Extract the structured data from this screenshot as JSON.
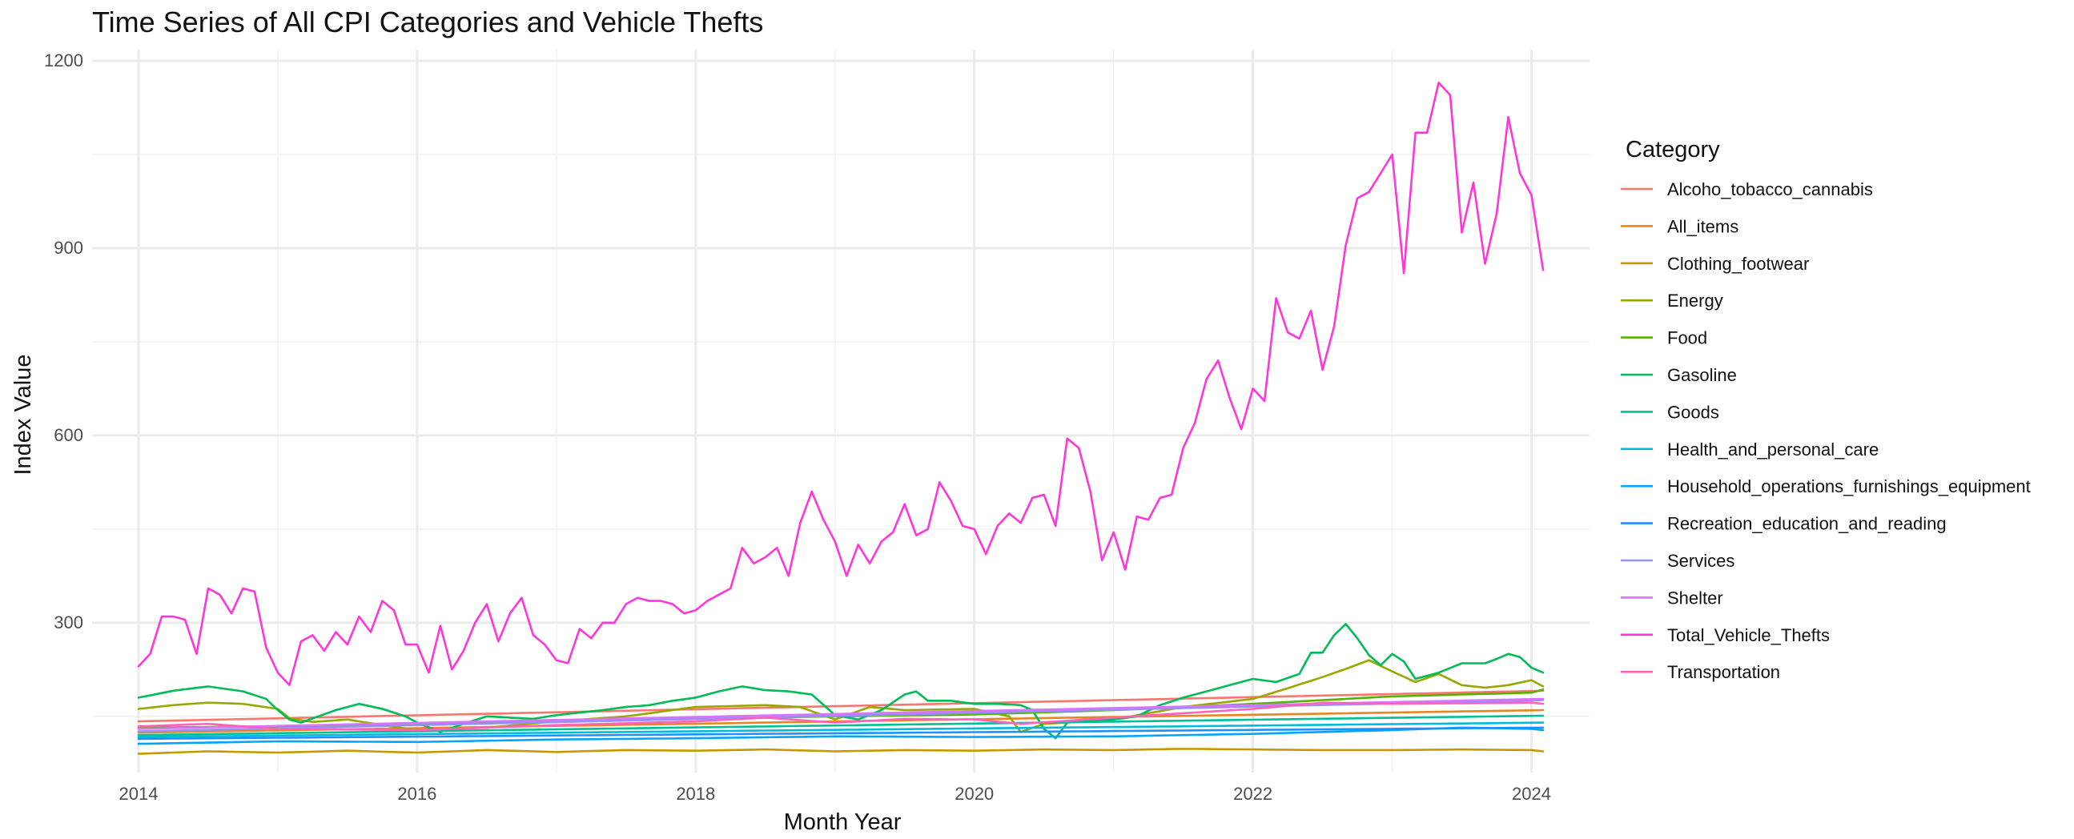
{
  "chart_data": {
    "type": "line",
    "title": "Time Series of All CPI Categories and Vehicle Thefts",
    "xlabel": "Month Year",
    "ylabel": "Index Value",
    "x_ticks": [
      "2014",
      "2016",
      "2018",
      "2020",
      "2022",
      "2024"
    ],
    "y_ticks": [
      300,
      600,
      900,
      1200
    ],
    "xlim": [
      "2013-09",
      "2024-06"
    ],
    "ylim": [
      60,
      1218
    ],
    "grid": true,
    "legend": {
      "title": "Category",
      "position": "right"
    },
    "x_start": "2014-01",
    "x_frequency": "monthly",
    "series": [
      {
        "name": "Alcoho_tobacco_cannabis",
        "color": "#F8766D",
        "kind": "linear",
        "values": [
          142,
          191
        ]
      },
      {
        "name": "All_items",
        "color": "#E7851E",
        "kind": "linear",
        "values": [
          124,
          160
        ]
      },
      {
        "name": "Clothing_footwear",
        "color": "#C49A00",
        "kind": "anchors",
        "values": [
          [
            0,
            90
          ],
          [
            6,
            94
          ],
          [
            12,
            92
          ],
          [
            18,
            95
          ],
          [
            24,
            92
          ],
          [
            30,
            96
          ],
          [
            36,
            93
          ],
          [
            42,
            96
          ],
          [
            48,
            95
          ],
          [
            54,
            97
          ],
          [
            60,
            94
          ],
          [
            66,
            96
          ],
          [
            72,
            95
          ],
          [
            78,
            97
          ],
          [
            84,
            96
          ],
          [
            90,
            98
          ],
          [
            96,
            97
          ],
          [
            102,
            96
          ],
          [
            108,
            96
          ],
          [
            114,
            97
          ],
          [
            120,
            96
          ],
          [
            121,
            94
          ]
        ]
      },
      {
        "name": "Energy",
        "color": "#99A800",
        "kind": "anchors",
        "values": [
          [
            0,
            162
          ],
          [
            3,
            168
          ],
          [
            6,
            172
          ],
          [
            9,
            170
          ],
          [
            12,
            162
          ],
          [
            13,
            147
          ],
          [
            15,
            141
          ],
          [
            18,
            145
          ],
          [
            21,
            136
          ],
          [
            24,
            128
          ],
          [
            30,
            132
          ],
          [
            36,
            142
          ],
          [
            42,
            150
          ],
          [
            48,
            165
          ],
          [
            54,
            168
          ],
          [
            57,
            165
          ],
          [
            60,
            145
          ],
          [
            63,
            165
          ],
          [
            66,
            160
          ],
          [
            72,
            162
          ],
          [
            75,
            150
          ],
          [
            76,
            125
          ],
          [
            78,
            138
          ],
          [
            84,
            145
          ],
          [
            90,
            165
          ],
          [
            96,
            178
          ],
          [
            99,
            195
          ],
          [
            102,
            213
          ],
          [
            104,
            226
          ],
          [
            106,
            240
          ],
          [
            108,
            222
          ],
          [
            110,
            205
          ],
          [
            112,
            218
          ],
          [
            114,
            200
          ],
          [
            116,
            196
          ],
          [
            118,
            200
          ],
          [
            120,
            208
          ],
          [
            121,
            198
          ]
        ]
      },
      {
        "name": "Food",
        "color": "#53B400",
        "kind": "anchors",
        "values": [
          [
            0,
            132
          ],
          [
            12,
            134
          ],
          [
            24,
            139
          ],
          [
            36,
            141
          ],
          [
            48,
            146
          ],
          [
            60,
            150
          ],
          [
            72,
            153
          ],
          [
            84,
            160
          ],
          [
            96,
            170
          ],
          [
            108,
            182
          ],
          [
            120,
            188
          ],
          [
            121,
            193
          ]
        ]
      },
      {
        "name": "Gasoline",
        "color": "#00BC56",
        "kind": "anchors",
        "values": [
          [
            0,
            180
          ],
          [
            3,
            191
          ],
          [
            6,
            198
          ],
          [
            9,
            190
          ],
          [
            11,
            178
          ],
          [
            12,
            160
          ],
          [
            13,
            145
          ],
          [
            14,
            140
          ],
          [
            17,
            160
          ],
          [
            19,
            170
          ],
          [
            21,
            162
          ],
          [
            23,
            150
          ],
          [
            24,
            140
          ],
          [
            26,
            125
          ],
          [
            28,
            138
          ],
          [
            30,
            150
          ],
          [
            32,
            148
          ],
          [
            34,
            146
          ],
          [
            36,
            152
          ],
          [
            38,
            156
          ],
          [
            40,
            160
          ],
          [
            42,
            165
          ],
          [
            44,
            168
          ],
          [
            46,
            175
          ],
          [
            48,
            180
          ],
          [
            50,
            190
          ],
          [
            52,
            198
          ],
          [
            54,
            192
          ],
          [
            56,
            190
          ],
          [
            58,
            185
          ],
          [
            60,
            152
          ],
          [
            62,
            145
          ],
          [
            64,
            160
          ],
          [
            66,
            185
          ],
          [
            67,
            190
          ],
          [
            68,
            175
          ],
          [
            70,
            175
          ],
          [
            72,
            170
          ],
          [
            74,
            170
          ],
          [
            76,
            168
          ],
          [
            77,
            160
          ],
          [
            78,
            130
          ],
          [
            79,
            115
          ],
          [
            80,
            140
          ],
          [
            84,
            145
          ],
          [
            86,
            150
          ],
          [
            88,
            168
          ],
          [
            90,
            180
          ],
          [
            92,
            190
          ],
          [
            94,
            200
          ],
          [
            96,
            210
          ],
          [
            98,
            205
          ],
          [
            100,
            218
          ],
          [
            101,
            252
          ],
          [
            102,
            252
          ],
          [
            103,
            280
          ],
          [
            104,
            298
          ],
          [
            105,
            275
          ],
          [
            106,
            248
          ],
          [
            107,
            232
          ],
          [
            108,
            250
          ],
          [
            109,
            238
          ],
          [
            110,
            210
          ],
          [
            112,
            220
          ],
          [
            114,
            235
          ],
          [
            116,
            235
          ],
          [
            117,
            242
          ],
          [
            118,
            250
          ],
          [
            119,
            245
          ],
          [
            120,
            228
          ],
          [
            121,
            220
          ]
        ]
      },
      {
        "name": "Goods",
        "color": "#00C094",
        "kind": "linear",
        "values": [
          120,
          151
        ]
      },
      {
        "name": "Health_and_personal_care",
        "color": "#00BBDA",
        "kind": "linear",
        "values": [
          117,
          140
        ]
      },
      {
        "name": "Household_operations_furnishings_equipment",
        "color": "#00A5FF",
        "kind": "anchors",
        "values": [
          [
            0,
            106
          ],
          [
            12,
            110
          ],
          [
            24,
            109
          ],
          [
            36,
            113
          ],
          [
            48,
            115
          ],
          [
            60,
            118
          ],
          [
            72,
            117
          ],
          [
            84,
            118
          ],
          [
            96,
            122
          ],
          [
            108,
            128
          ],
          [
            114,
            132
          ],
          [
            120,
            130
          ],
          [
            121,
            128
          ]
        ]
      },
      {
        "name": "Recreation_education_and_reading",
        "color": "#1E90FF",
        "kind": "linear",
        "values": [
          114,
          132
        ]
      },
      {
        "name": "Services",
        "color": "#9590FF",
        "kind": "linear",
        "values": [
          126,
          176
        ]
      },
      {
        "name": "Shelter",
        "color": "#D873FC",
        "kind": "linear",
        "values": [
          130,
          178
        ]
      },
      {
        "name": "Total_Vehicle_Thefts",
        "color": "#FF36D8",
        "kind": "monthly",
        "values": [
          230,
          250,
          310,
          310,
          305,
          250,
          355,
          345,
          315,
          355,
          350,
          260,
          220,
          200,
          270,
          280,
          255,
          285,
          265,
          310,
          285,
          335,
          320,
          265,
          265,
          220,
          295,
          225,
          255,
          300,
          330,
          270,
          315,
          340,
          280,
          265,
          240,
          235,
          290,
          275,
          300,
          300,
          330,
          340,
          335,
          335,
          330,
          315,
          320,
          335,
          345,
          355,
          420,
          395,
          405,
          420,
          375,
          460,
          510,
          465,
          430,
          375,
          425,
          395,
          430,
          445,
          490,
          440,
          450,
          525,
          495,
          455,
          450,
          410,
          455,
          475,
          460,
          500,
          505,
          455,
          595,
          580,
          510,
          400,
          445,
          385,
          470,
          465,
          500,
          505,
          580,
          620,
          690,
          720,
          660,
          610,
          675,
          655,
          820,
          765,
          755,
          800,
          705,
          775,
          905,
          980,
          990,
          1020,
          1050,
          860,
          1085,
          1085,
          1165,
          1145,
          925,
          1005,
          875,
          955,
          1110,
          1020,
          985,
          865
        ]
      },
      {
        "name": "Transportation",
        "color": "#FF62BC",
        "kind": "anchors",
        "values": [
          [
            0,
            134
          ],
          [
            6,
            138
          ],
          [
            12,
            130
          ],
          [
            24,
            128
          ],
          [
            36,
            136
          ],
          [
            48,
            142
          ],
          [
            54,
            148
          ],
          [
            60,
            140
          ],
          [
            66,
            146
          ],
          [
            72,
            145
          ],
          [
            76,
            138
          ],
          [
            84,
            148
          ],
          [
            96,
            162
          ],
          [
            102,
            172
          ],
          [
            108,
            170
          ],
          [
            114,
            171
          ],
          [
            120,
            172
          ],
          [
            121,
            170
          ]
        ]
      }
    ]
  }
}
